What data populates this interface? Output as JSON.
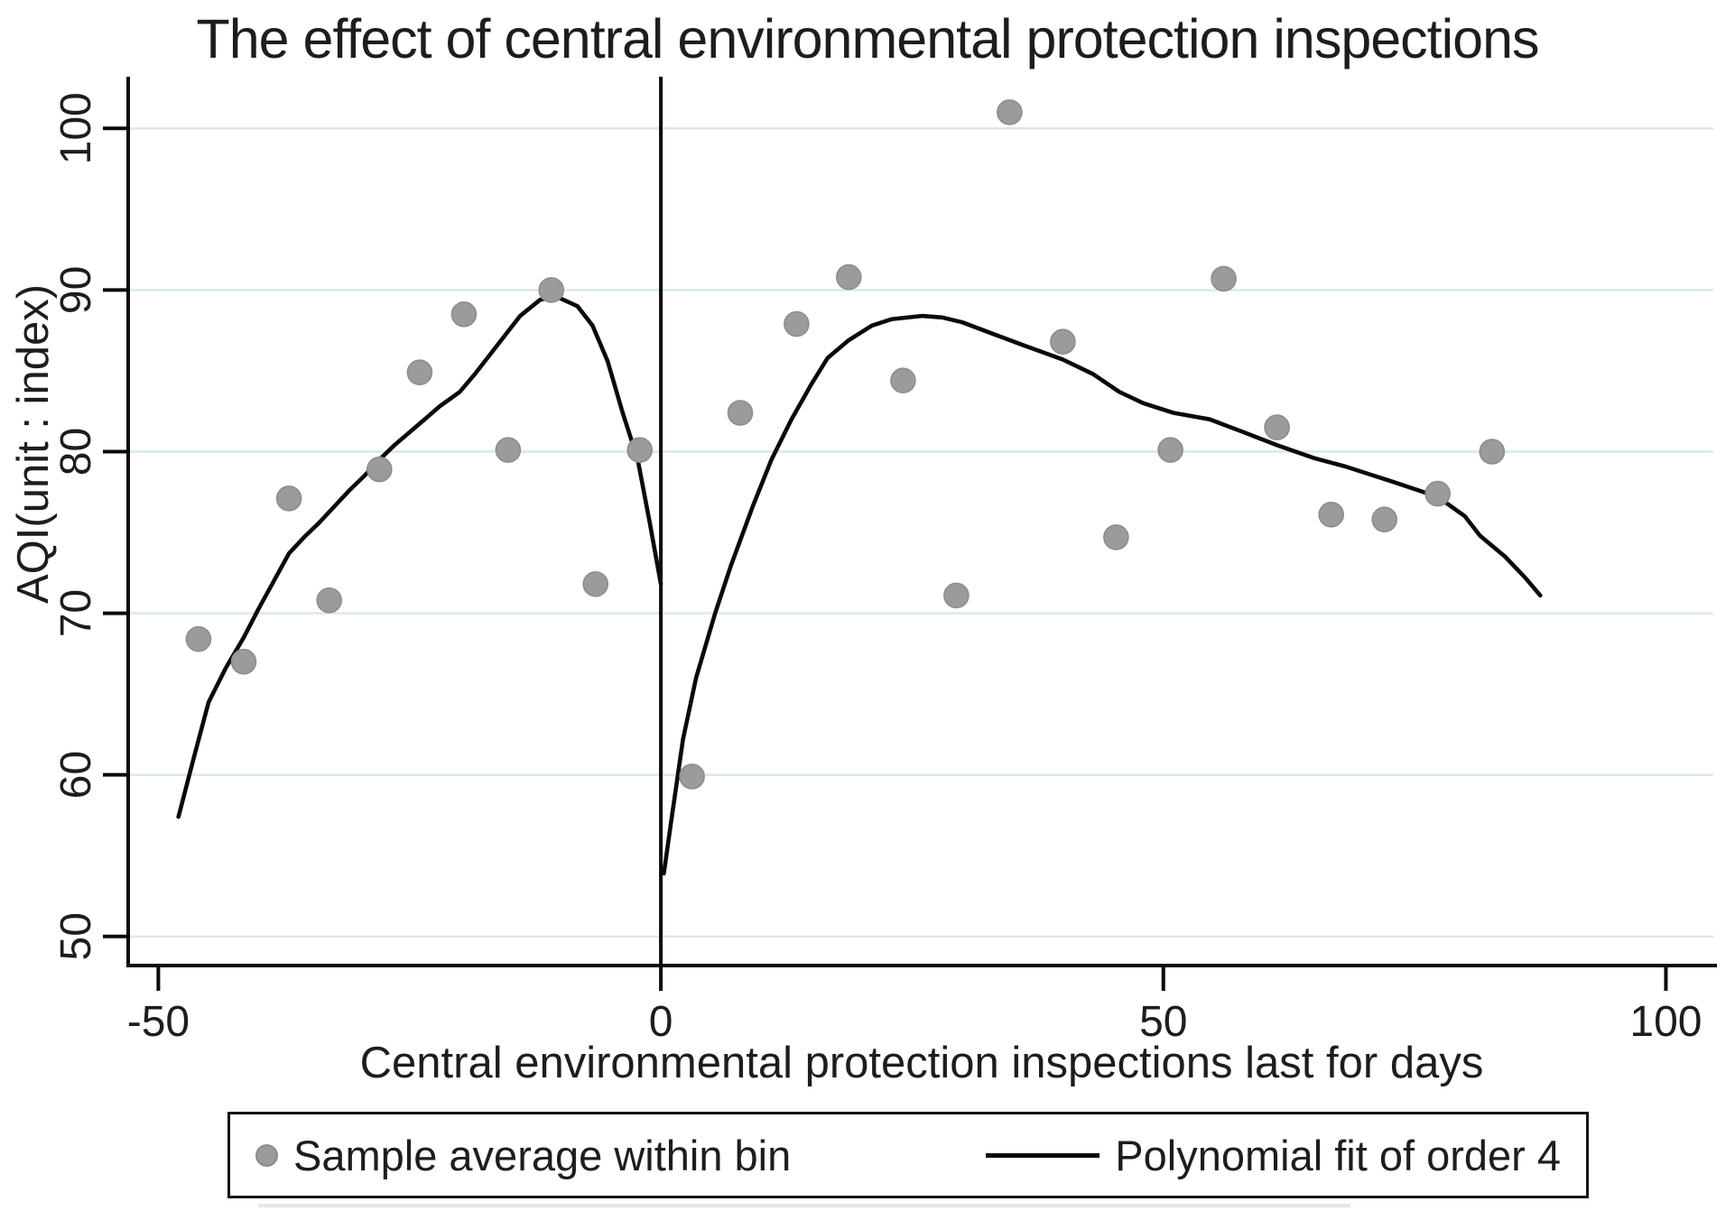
{
  "colors": {
    "background": "#ffffff",
    "text": "#1d1d1f",
    "gridline": "#d6e8ee",
    "axis": "#0a0a0a",
    "cutoff_line": "#0a0a0a",
    "marker_fill": "#9a9c9b",
    "marker_stroke": "#8b8d8c",
    "fit_line": "#0a0a0a"
  },
  "chart_data": {
    "type": "scatter",
    "title": "The effect of central environmental protection inspections",
    "xlabel": "Central environmental protection inspections last for days",
    "ylabel": "AQI(unit : index)",
    "xlim": [
      -53,
      104.9
    ],
    "ylim": [
      48.2,
      103.2
    ],
    "x_ticks": [
      -50,
      0,
      50,
      100
    ],
    "y_ticks": [
      50,
      60,
      70,
      80,
      90,
      100
    ],
    "grid": "horizontal gridlines at y ticks, light blue",
    "legend_position": "bottom, boxed, horizontal",
    "cutoff_x": 0,
    "legend": [
      {
        "marker": "dot",
        "label": "Sample average within bin"
      },
      {
        "marker": "line",
        "label": "Polynomial fit of order 4"
      }
    ],
    "series": [
      {
        "name": "Sample average within bin",
        "type": "scatter",
        "points": [
          [
            -46,
            68.4
          ],
          [
            -41.5,
            67.0
          ],
          [
            -37,
            77.1
          ],
          [
            -33,
            70.8
          ],
          [
            -28,
            78.9
          ],
          [
            -24,
            84.9
          ],
          [
            -19.6,
            88.5
          ],
          [
            -15.2,
            80.1
          ],
          [
            -10.9,
            90.0
          ],
          [
            -6.5,
            71.8
          ],
          [
            -2.1,
            80.1
          ],
          [
            3.1,
            59.9
          ],
          [
            7.9,
            82.4
          ],
          [
            13.5,
            87.9
          ],
          [
            18.7,
            90.8
          ],
          [
            24.1,
            84.4
          ],
          [
            29.4,
            71.1
          ],
          [
            34.7,
            101.0
          ],
          [
            40.0,
            86.8
          ],
          [
            45.3,
            74.7
          ],
          [
            50.7,
            80.1
          ],
          [
            56.0,
            90.7
          ],
          [
            61.3,
            81.5
          ],
          [
            66.7,
            76.1
          ],
          [
            72.0,
            75.8
          ],
          [
            77.3,
            77.4
          ],
          [
            82.7,
            80.0
          ]
        ]
      },
      {
        "name": "Polynomial fit of order 4",
        "type": "line",
        "segments": [
          [
            [
              -48,
              57.4
            ],
            [
              -46.5,
              61.0
            ],
            [
              -45,
              64.5
            ],
            [
              -43.3,
              66.6
            ],
            [
              -41.5,
              68.5
            ],
            [
              -40,
              70.3
            ],
            [
              -38.5,
              72.0
            ],
            [
              -37,
              73.7
            ],
            [
              -35.5,
              74.7
            ],
            [
              -34,
              75.6
            ],
            [
              -32.5,
              76.6
            ],
            [
              -31,
              77.6
            ],
            [
              -29.5,
              78.5
            ],
            [
              -28,
              79.5
            ],
            [
              -26.5,
              80.4
            ],
            [
              -25,
              81.2
            ],
            [
              -23.5,
              82.0
            ],
            [
              -22,
              82.8
            ],
            [
              -20,
              83.7
            ],
            [
              -18.5,
              84.8
            ],
            [
              -17,
              86.0
            ],
            [
              -15.5,
              87.2
            ],
            [
              -14,
              88.4
            ],
            [
              -12,
              89.4
            ],
            [
              -10.4,
              89.6
            ],
            [
              -8.3,
              89.0
            ],
            [
              -6.8,
              87.8
            ],
            [
              -5.3,
              85.6
            ],
            [
              -3.8,
              82.4
            ],
            [
              -2.3,
              79.5
            ],
            [
              -1.1,
              75.6
            ],
            [
              0,
              71.8
            ]
          ],
          [
            [
              0.3,
              53.9
            ],
            [
              1,
              57.0
            ],
            [
              2.2,
              62.2
            ],
            [
              3.5,
              66.0
            ],
            [
              5.4,
              70.0
            ],
            [
              7,
              73.0
            ],
            [
              9.2,
              76.7
            ],
            [
              11,
              79.5
            ],
            [
              13,
              82.0
            ],
            [
              15,
              84.2
            ],
            [
              16.6,
              85.8
            ],
            [
              18.7,
              86.9
            ],
            [
              21,
              87.8
            ],
            [
              23,
              88.2
            ],
            [
              26,
              88.4
            ],
            [
              28,
              88.3
            ],
            [
              30,
              88.0
            ],
            [
              33,
              87.3
            ],
            [
              36,
              86.6
            ],
            [
              40,
              85.7
            ],
            [
              43,
              84.8
            ],
            [
              45.6,
              83.7
            ],
            [
              48,
              83.0
            ],
            [
              51,
              82.4
            ],
            [
              54.6,
              82.0
            ],
            [
              58,
              81.2
            ],
            [
              61.3,
              80.4
            ],
            [
              65,
              79.6
            ],
            [
              68,
              79.1
            ],
            [
              72.5,
              78.2
            ],
            [
              77.3,
              77.2
            ],
            [
              80,
              76.0
            ],
            [
              81.5,
              74.8
            ],
            [
              84,
              73.5
            ],
            [
              86,
              72.2
            ],
            [
              87.5,
              71.1
            ]
          ]
        ]
      }
    ]
  }
}
